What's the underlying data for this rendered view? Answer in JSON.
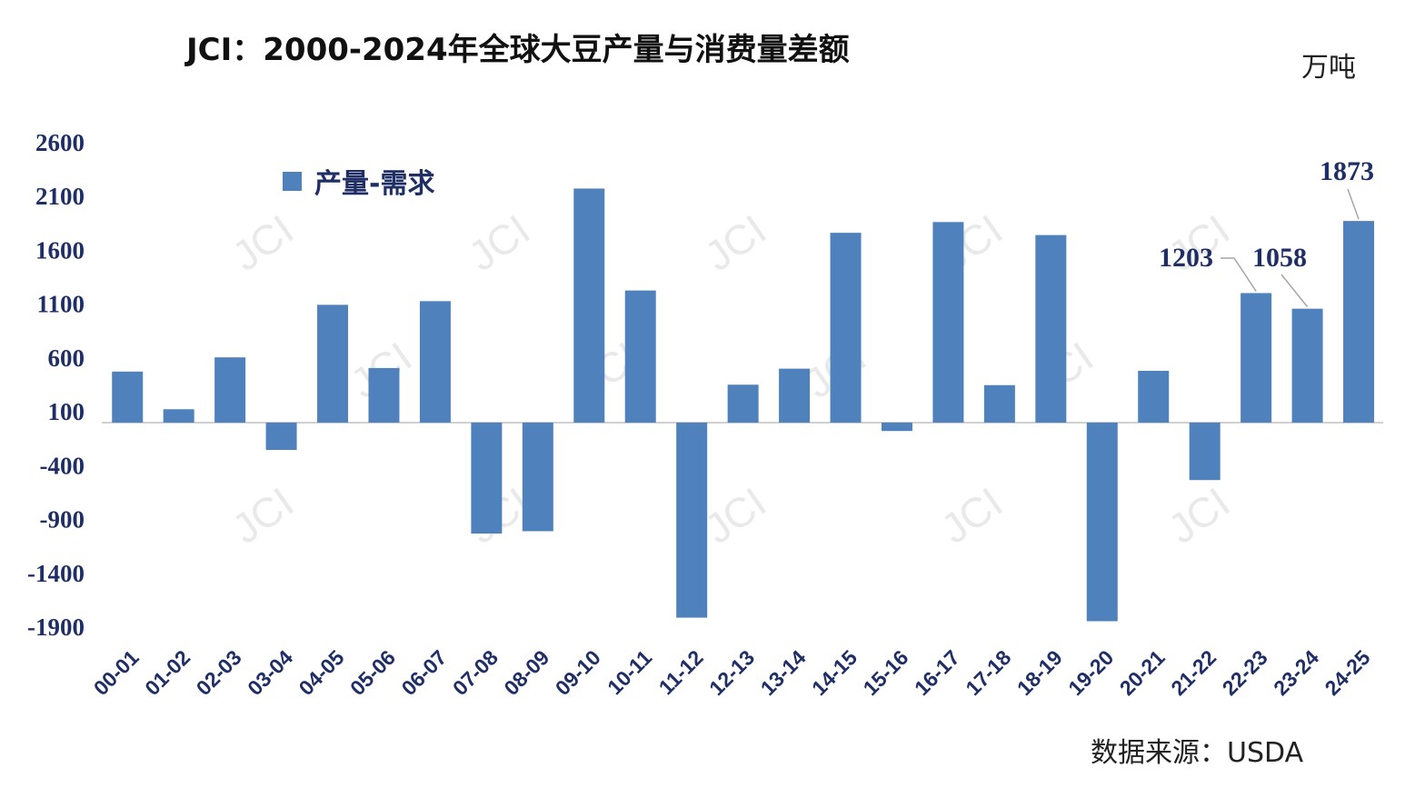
{
  "colors": {
    "bar": "#4f81bd",
    "axis_text": "#1f2f66",
    "zero_line": "#d0d0d0",
    "leader": "#a6a6a6"
  },
  "header": {
    "title": "JCI：2000-2024年全球大豆产量与消费量差额",
    "unit": "万吨"
  },
  "footer": {
    "source": "数据来源：USDA"
  },
  "watermark": {
    "text": "JCI"
  },
  "chart_data": {
    "type": "bar",
    "categories": [
      "00-01",
      "01-02",
      "02-03",
      "03-04",
      "04-05",
      "05-06",
      "06-07",
      "07-08",
      "08-09",
      "09-10",
      "10-11",
      "11-12",
      "12-13",
      "13-14",
      "14-15",
      "15-16",
      "16-17",
      "17-18",
      "18-19",
      "19-20",
      "20-21",
      "21-22",
      "22-23",
      "23-24",
      "24-25"
    ],
    "series": [
      {
        "name": "产量-需求",
        "values": [
          474,
          124,
          606,
          -254,
          1094,
          507,
          1128,
          -1031,
          -1009,
          2174,
          1227,
          -1812,
          352,
          501,
          1763,
          -78,
          1863,
          348,
          1742,
          -1845,
          481,
          -534,
          1203,
          1058,
          1873
        ]
      }
    ],
    "data_labels": [
      {
        "category": "22-23",
        "text": "1203"
      },
      {
        "category": "23-24",
        "text": "1058"
      },
      {
        "category": "24-25",
        "text": "1873"
      }
    ],
    "yticks": [
      2600,
      2100,
      1600,
      1100,
      600,
      100,
      -400,
      -900,
      -1400,
      -1900
    ],
    "ylim": [
      -1900,
      2600
    ],
    "xlabel": "",
    "ylabel": "万吨",
    "legend": {
      "position": "top-left",
      "label": "产量-需求"
    },
    "grid": false
  }
}
